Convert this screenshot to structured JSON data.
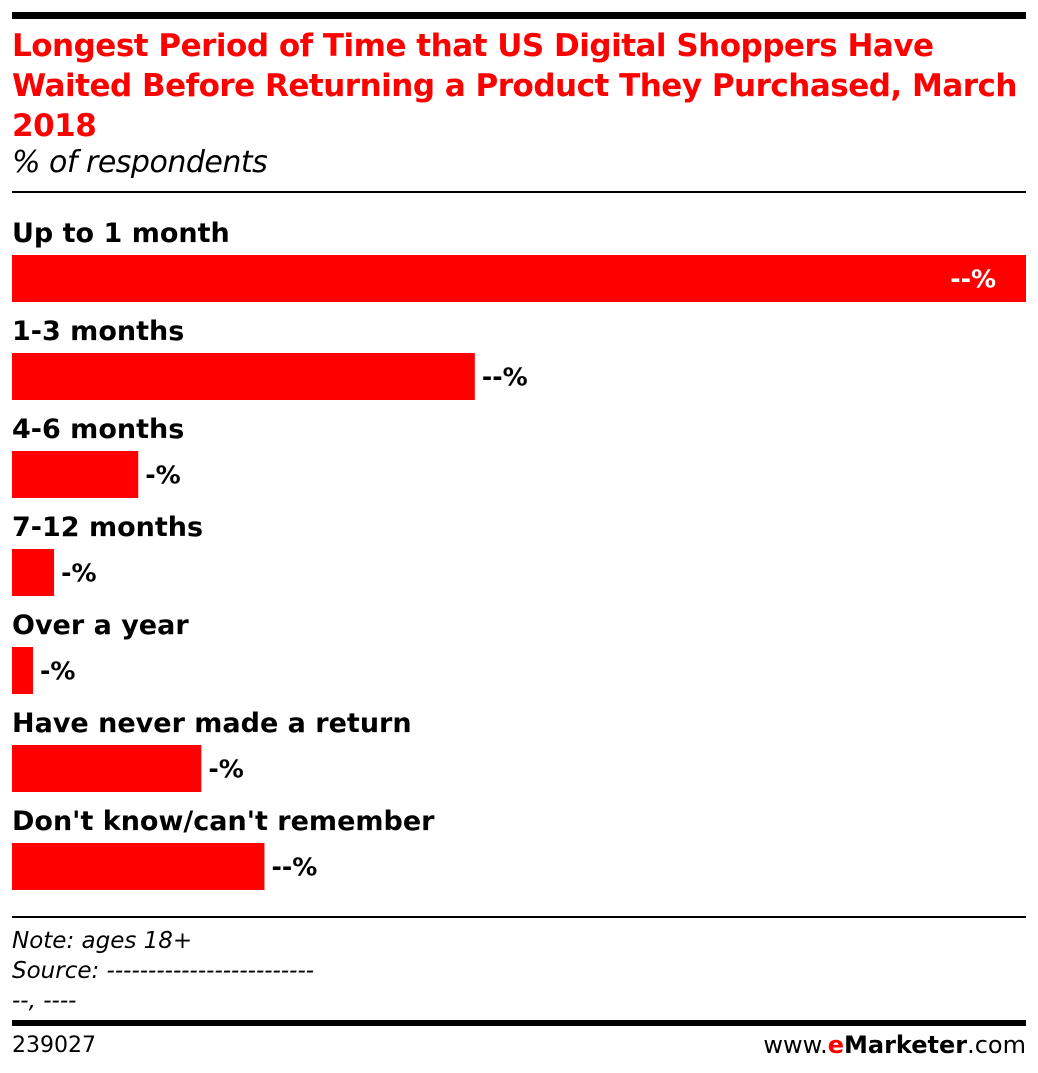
{
  "header": {
    "title": "Longest Period of Time that US Digital Shoppers Have Waited Before Returning a Product They Purchased, March 2018",
    "subtitle": "% of respondents"
  },
  "chart_data": {
    "type": "bar",
    "orientation": "horizontal",
    "categories": [
      "Up to 1 month",
      "1-3 months",
      "4-6 months",
      "7-12 months",
      "Over a year",
      "Have never made a return",
      "Don't know/can't remember"
    ],
    "values": [
      48.2,
      22.0,
      6.0,
      2.0,
      1.0,
      9.0,
      12.0
    ],
    "value_labels": [
      "--%",
      "--%",
      "-%",
      "-%",
      "-%",
      "-%",
      "--%"
    ],
    "xlim": [
      0,
      48.2
    ],
    "grid": false,
    "legend": "none",
    "bar_color": "#ff0000"
  },
  "footer": {
    "note": "Note: ages 18+",
    "source": "Source: -------------------------",
    "source_line2": "--, ----",
    "chart_id": "239027",
    "brand_prefix": "www.",
    "brand_e": "e",
    "brand_name": "Marketer",
    "brand_suffix": ".com"
  }
}
